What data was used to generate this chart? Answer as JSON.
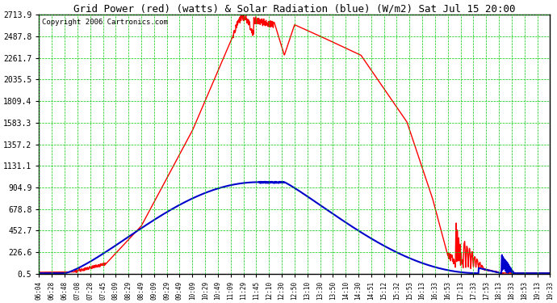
{
  "title": "Grid Power (red) (watts) & Solar Radiation (blue) (W/m2) Sat Jul 15 20:00",
  "copyright": "Copyright 2006 Cartronics.com",
  "background_color": "#ffffff",
  "plot_bg_color": "#ffffff",
  "grid_color": "#00cc00",
  "y_ticks": [
    0.5,
    226.6,
    452.7,
    678.8,
    904.9,
    1131.1,
    1357.2,
    1583.3,
    1809.4,
    2035.5,
    2261.7,
    2487.8,
    2713.9
  ],
  "ymin": 0.5,
  "ymax": 2713.9,
  "x_labels": [
    "06:04",
    "06:28",
    "06:48",
    "07:08",
    "07:28",
    "07:45",
    "08:09",
    "08:29",
    "08:49",
    "09:09",
    "09:29",
    "09:49",
    "10:09",
    "10:29",
    "10:49",
    "11:09",
    "11:29",
    "11:45",
    "12:10",
    "12:30",
    "12:50",
    "13:10",
    "13:30",
    "13:50",
    "14:10",
    "14:30",
    "14:51",
    "15:12",
    "15:32",
    "15:53",
    "16:13",
    "16:33",
    "16:53",
    "17:13",
    "17:33",
    "17:53",
    "18:13",
    "18:33",
    "18:53",
    "19:13",
    "19:33"
  ],
  "red_color": "#ff0000",
  "blue_color": "#0000cc",
  "red_linewidth": 1.0,
  "blue_linewidth": 1.5,
  "title_fontsize": 9.0,
  "ytick_fontsize": 7.0,
  "xtick_fontsize": 5.5,
  "copyright_fontsize": 6.5
}
